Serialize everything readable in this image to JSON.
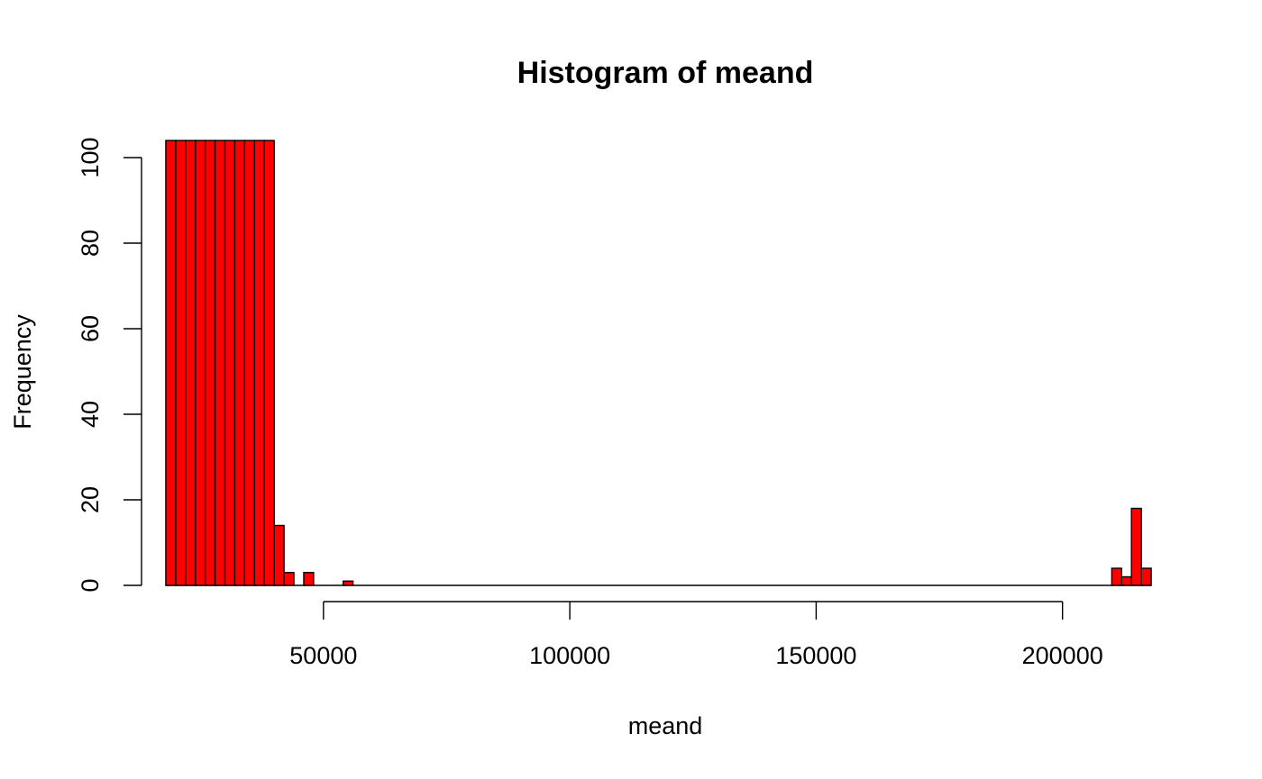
{
  "chart_data": {
    "type": "bar",
    "title": "Histogram of meand",
    "xlabel": "meand",
    "ylabel": "Frequency",
    "bar_color": "#ff0000",
    "border_color": "#000000",
    "xlim": [
      16000,
      220000
    ],
    "ylim": [
      0,
      104
    ],
    "x_ticks": [
      50000,
      100000,
      150000,
      200000
    ],
    "x_tick_labels": [
      "50000",
      "100000",
      "150000",
      "200000"
    ],
    "x_axis_range": [
      50000,
      200000
    ],
    "y_ticks": [
      0,
      20,
      40,
      60,
      80,
      100
    ],
    "y_tick_labels": [
      "0",
      "20",
      "40",
      "60",
      "80",
      "100"
    ],
    "bins": [
      {
        "x0": 18000,
        "x1": 20000,
        "count": 104
      },
      {
        "x0": 20000,
        "x1": 22000,
        "count": 104
      },
      {
        "x0": 22000,
        "x1": 24000,
        "count": 104
      },
      {
        "x0": 24000,
        "x1": 26000,
        "count": 104
      },
      {
        "x0": 26000,
        "x1": 28000,
        "count": 104
      },
      {
        "x0": 28000,
        "x1": 30000,
        "count": 104
      },
      {
        "x0": 30000,
        "x1": 32000,
        "count": 104
      },
      {
        "x0": 32000,
        "x1": 34000,
        "count": 104
      },
      {
        "x0": 34000,
        "x1": 36000,
        "count": 104
      },
      {
        "x0": 36000,
        "x1": 38000,
        "count": 104
      },
      {
        "x0": 38000,
        "x1": 40000,
        "count": 104
      },
      {
        "x0": 40000,
        "x1": 42000,
        "count": 14
      },
      {
        "x0": 42000,
        "x1": 44000,
        "count": 3
      },
      {
        "x0": 46000,
        "x1": 48000,
        "count": 3
      },
      {
        "x0": 54000,
        "x1": 56000,
        "count": 1
      },
      {
        "x0": 210000,
        "x1": 212000,
        "count": 4
      },
      {
        "x0": 212000,
        "x1": 214000,
        "count": 2
      },
      {
        "x0": 214000,
        "x1": 216000,
        "count": 18
      },
      {
        "x0": 216000,
        "x1": 218000,
        "count": 4
      }
    ],
    "baseline_range": [
      18000,
      218000
    ],
    "grid": false
  }
}
